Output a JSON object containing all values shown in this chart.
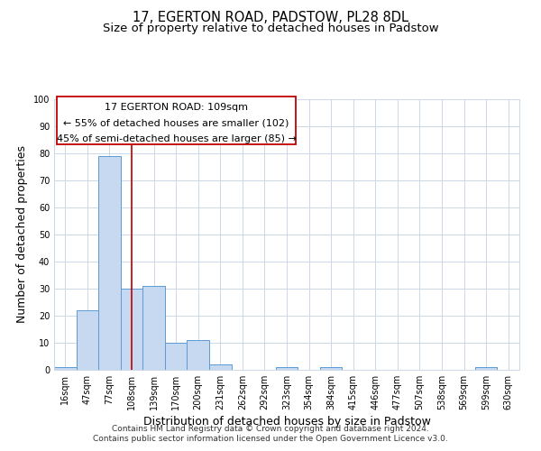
{
  "title": "17, EGERTON ROAD, PADSTOW, PL28 8DL",
  "subtitle": "Size of property relative to detached houses in Padstow",
  "xlabel": "Distribution of detached houses by size in Padstow",
  "ylabel": "Number of detached properties",
  "bar_labels": [
    "16sqm",
    "47sqm",
    "77sqm",
    "108sqm",
    "139sqm",
    "170sqm",
    "200sqm",
    "231sqm",
    "262sqm",
    "292sqm",
    "323sqm",
    "354sqm",
    "384sqm",
    "415sqm",
    "446sqm",
    "477sqm",
    "507sqm",
    "538sqm",
    "569sqm",
    "599sqm",
    "630sqm"
  ],
  "bar_values": [
    1,
    22,
    79,
    30,
    31,
    10,
    11,
    2,
    0,
    0,
    1,
    0,
    1,
    0,
    0,
    0,
    0,
    0,
    0,
    1,
    0
  ],
  "bar_color": "#c6d9f0",
  "bar_edge_color": "#5b9bd5",
  "vline_x": 3,
  "vline_color": "#c00000",
  "ann_line1": "17 EGERTON ROAD: 109sqm",
  "ann_line2": "← 55% of detached houses are smaller (102)",
  "ann_line3": "45% of semi-detached houses are larger (85) →",
  "ylim": [
    0,
    100
  ],
  "yticks": [
    0,
    10,
    20,
    30,
    40,
    50,
    60,
    70,
    80,
    90,
    100
  ],
  "footer_line1": "Contains HM Land Registry data © Crown copyright and database right 2024.",
  "footer_line2": "Contains public sector information licensed under the Open Government Licence v3.0.",
  "background_color": "#ffffff",
  "grid_color": "#cdd8e8",
  "title_fontsize": 10.5,
  "subtitle_fontsize": 9.5,
  "axis_label_fontsize": 9,
  "tick_fontsize": 7,
  "ann_fontsize": 8,
  "footer_fontsize": 6.5
}
